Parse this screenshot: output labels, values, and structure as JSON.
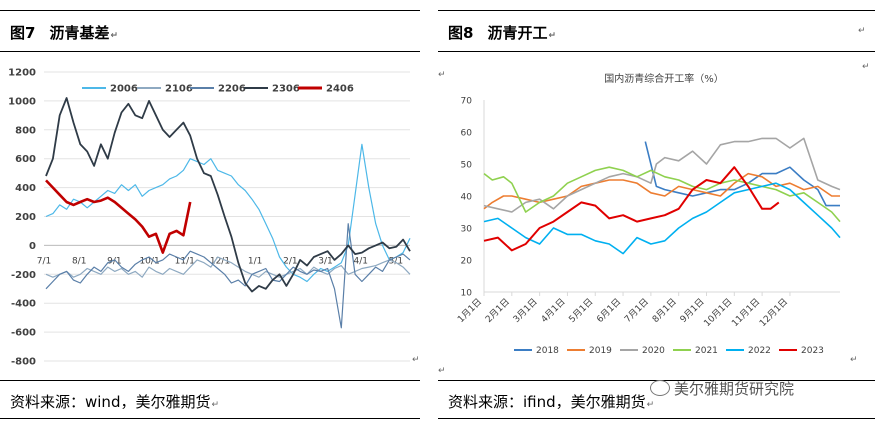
{
  "left": {
    "fig_num": "图7",
    "fig_title": "沥青基差",
    "source": "资料来源：wind，美尔雅期货",
    "mark": "↵"
  },
  "right": {
    "fig_num": "图8",
    "fig_title": "沥青开工",
    "source": "资料来源：ifind，美尔雅期货",
    "mark": "↵"
  },
  "watermark": "美尔雅期货研究院",
  "colors": {
    "2006": "#4db8e8",
    "2106": "#8ea9c1",
    "2206": "#5a7fa8",
    "2306": "#2f3b47",
    "2406": "#c00000",
    "2018": "#3b7dc4",
    "2019": "#ed7d31",
    "2020": "#a5a5a5",
    "2021": "#8fd14f",
    "2022": "#00b0f0",
    "2023": "#e00000"
  },
  "chart_data": [
    {
      "type": "line",
      "title": "",
      "xlabel": "",
      "ylabel": "",
      "ylim": [
        -800,
        1200
      ],
      "yticks": [
        "1200",
        "1000",
        "800",
        "600",
        "400",
        "200",
        "0",
        "-200",
        "-400",
        "-600",
        "-800"
      ],
      "xticks": [
        "7/1",
        "8/1",
        "9/1",
        "10/1",
        "11/1",
        "12/1",
        "1/1",
        "2/1",
        "3/1",
        "4/1",
        "5/1"
      ],
      "grid": true,
      "legend_position": "top",
      "series": [
        {
          "name": "2006",
          "values": [
            200,
            220,
            280,
            250,
            320,
            300,
            260,
            300,
            340,
            380,
            360,
            420,
            380,
            420,
            340,
            380,
            400,
            420,
            460,
            480,
            520,
            600,
            580,
            560,
            600,
            520,
            500,
            480,
            420,
            380,
            320,
            250,
            150,
            50,
            -80,
            -150,
            -200,
            -220,
            -250,
            -200,
            -160,
            -180,
            -150,
            -120,
            0,
            350,
            700,
            400,
            150,
            0,
            -100,
            -80,
            -50,
            50
          ]
        },
        {
          "name": "2106",
          "values": [
            -200,
            -220,
            -200,
            -180,
            -220,
            -200,
            -160,
            -180,
            -200,
            -150,
            -180,
            -160,
            -200,
            -180,
            -220,
            -150,
            -180,
            -200,
            -160,
            -180,
            -200,
            -150,
            -100,
            -120,
            -150,
            -80,
            -100,
            -120,
            -150,
            -180,
            -200,
            -220,
            -180,
            -200,
            -220,
            -200,
            -180,
            -160,
            -200,
            -150,
            -180,
            -200,
            -160,
            -140,
            -200,
            -180,
            -160,
            -150,
            -140,
            -120,
            -100,
            -120,
            -150,
            -200
          ]
        },
        {
          "name": "2206",
          "values": [
            -300,
            -250,
            -200,
            -180,
            -240,
            -260,
            -200,
            -150,
            -180,
            -120,
            -100,
            -150,
            -180,
            -130,
            -100,
            -80,
            -120,
            -100,
            -60,
            -80,
            -100,
            -40,
            -60,
            -80,
            -120,
            -160,
            -200,
            -260,
            -240,
            -280,
            -200,
            -180,
            -160,
            -240,
            -250,
            -200,
            -150,
            -180,
            -200,
            -170,
            -180,
            -160,
            -300,
            -570,
            150,
            -200,
            -250,
            -200,
            -150,
            -180,
            -100,
            -80,
            -60,
            -100
          ]
        },
        {
          "name": "2306",
          "values": [
            480,
            600,
            900,
            1020,
            850,
            700,
            650,
            550,
            700,
            600,
            780,
            920,
            980,
            900,
            880,
            1000,
            900,
            800,
            750,
            800,
            850,
            760,
            600,
            500,
            480,
            350,
            200,
            60,
            -120,
            -260,
            -320,
            -280,
            -300,
            -240,
            -200,
            -280,
            -200,
            -100,
            -140,
            -80,
            -60,
            -40,
            -100,
            -60,
            0,
            -60,
            -50,
            -20,
            0,
            20,
            -20,
            -10,
            40,
            -40
          ]
        },
        {
          "name": "2406",
          "values": [
            450,
            400,
            350,
            300,
            280,
            300,
            320,
            300,
            310,
            330,
            300,
            260,
            220,
            180,
            130,
            60,
            80,
            -50,
            80,
            100,
            70,
            300
          ]
        }
      ]
    },
    {
      "type": "line",
      "title": "国内沥青综合开工率（%）",
      "xlabel": "",
      "ylabel": "",
      "ylim": [
        10,
        70
      ],
      "yticks": [
        "70",
        "60",
        "50",
        "40",
        "30",
        "20",
        "10"
      ],
      "xticks": [
        "1月1日",
        "2月1日",
        "3月1日",
        "4月1日",
        "5月1日",
        "6月1日",
        "7月1日",
        "8月1日",
        "9月1日",
        "10月1日",
        "11月1日",
        "12月1日"
      ],
      "grid": false,
      "legend_position": "bottom",
      "series": [
        {
          "name": "2018",
          "x": [
            5.8,
            6.2,
            6.5,
            7,
            7.5,
            8,
            8.5,
            9,
            9.5,
            10,
            10.5,
            11,
            11.5,
            12,
            12.3,
            12.8
          ],
          "values": [
            57,
            43,
            42,
            41,
            40,
            41,
            42,
            42,
            44,
            47,
            47,
            49,
            45,
            42,
            37,
            37
          ]
        },
        {
          "name": "2019",
          "x": [
            0,
            0.3,
            0.7,
            1,
            1.5,
            2,
            2.5,
            3,
            3.5,
            4,
            4.5,
            5,
            5.5,
            6,
            6.5,
            7,
            7.5,
            8,
            8.5,
            9,
            9.5,
            10,
            10.5,
            11,
            11.5,
            12,
            12.5,
            12.8
          ],
          "values": [
            36,
            38,
            40,
            40,
            39,
            38,
            39,
            40,
            43,
            44,
            45,
            45,
            44,
            41,
            40,
            43,
            42,
            41,
            40,
            44,
            47,
            46,
            43,
            44,
            42,
            43,
            40,
            40
          ]
        },
        {
          "name": "2020",
          "x": [
            0,
            0.5,
            1,
            1.5,
            2,
            2.5,
            3,
            3.5,
            4,
            4.5,
            5,
            5.5,
            6,
            6.2,
            6.5,
            7,
            7.5,
            8,
            8.5,
            9,
            9.5,
            10,
            10.5,
            11,
            11.5,
            12,
            12.5,
            12.8
          ],
          "values": [
            37,
            36,
            35,
            38,
            39,
            36,
            40,
            42,
            44,
            46,
            47,
            46,
            44,
            50,
            52,
            51,
            54,
            50,
            56,
            57,
            57,
            58,
            58,
            55,
            58,
            45,
            43,
            42
          ]
        },
        {
          "name": "2021",
          "x": [
            0,
            0.3,
            0.7,
            1,
            1.5,
            2,
            2.5,
            3,
            3.5,
            4,
            4.5,
            5,
            5.5,
            6,
            6.5,
            7,
            7.5,
            8,
            8.5,
            9,
            9.5,
            10,
            10.5,
            11,
            11.5,
            12,
            12.5,
            12.8
          ],
          "values": [
            47,
            45,
            46,
            44,
            35,
            38,
            40,
            44,
            46,
            48,
            49,
            48,
            46,
            48,
            46,
            45,
            43,
            42,
            44,
            45,
            44,
            43,
            42,
            40,
            41,
            38,
            35,
            32
          ]
        },
        {
          "name": "2022",
          "x": [
            0,
            0.5,
            1,
            1.5,
            2,
            2.5,
            3,
            3.5,
            4,
            4.5,
            5,
            5.5,
            6,
            6.5,
            7,
            7.5,
            8,
            8.5,
            9,
            9.5,
            10,
            10.5,
            11,
            11.5,
            12,
            12.5,
            12.8
          ],
          "values": [
            32,
            33,
            30,
            27,
            25,
            30,
            28,
            28,
            26,
            25,
            22,
            27,
            25,
            26,
            30,
            33,
            35,
            38,
            41,
            42,
            43,
            44,
            42,
            38,
            34,
            30,
            27
          ]
        },
        {
          "name": "2023",
          "x": [
            0,
            0.5,
            1,
            1.5,
            2,
            2.5,
            3,
            3.5,
            4,
            4.5,
            5,
            5.5,
            6,
            6.5,
            7,
            7.5,
            8,
            8.5,
            9,
            9.5,
            10,
            10.3,
            10.6
          ],
          "values": [
            26,
            27,
            23,
            25,
            30,
            32,
            35,
            38,
            37,
            33,
            34,
            32,
            33,
            34,
            36,
            42,
            45,
            44,
            49,
            43,
            36,
            36,
            38
          ]
        }
      ]
    }
  ]
}
